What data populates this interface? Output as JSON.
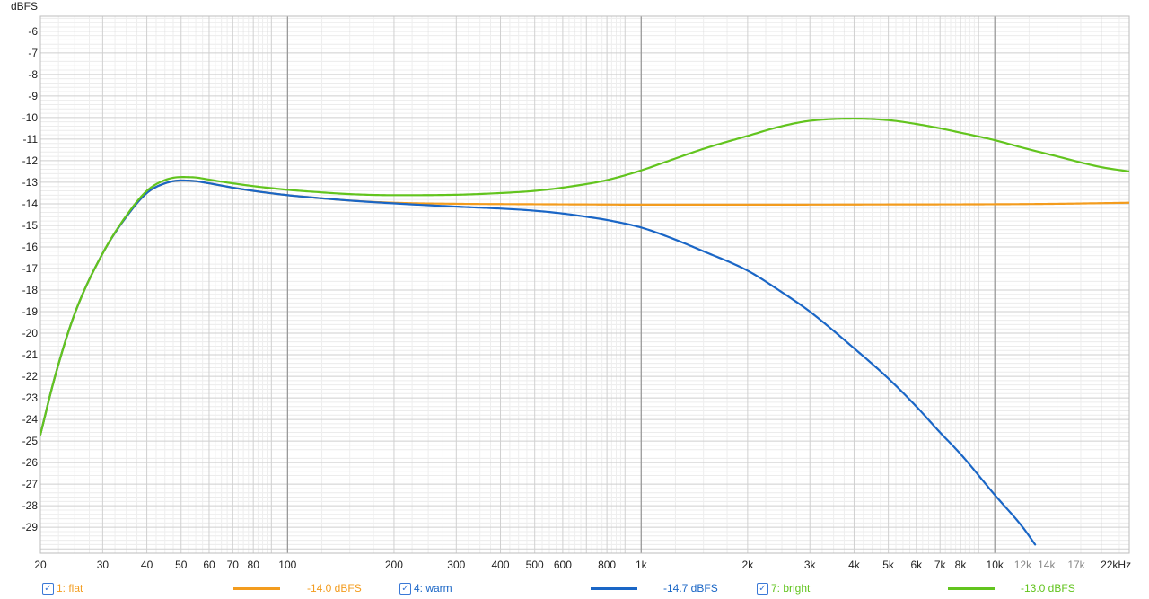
{
  "chart_data": {
    "type": "line",
    "ylabel": "dBFS",
    "xscale": "log",
    "xlim": [
      20,
      24000
    ],
    "ylim": [
      -30.2,
      -5.3
    ],
    "grid": true,
    "legend_placement": "bottom",
    "yticks": [
      -6,
      -7,
      -8,
      -9,
      -10,
      -11,
      -12,
      -13,
      -14,
      -15,
      -16,
      -17,
      -18,
      -19,
      -20,
      -21,
      -22,
      -23,
      -24,
      -25,
      -26,
      -27,
      -28,
      -29
    ],
    "xticks": [
      {
        "value": 20,
        "label": "20"
      },
      {
        "value": 30,
        "label": "30"
      },
      {
        "value": 40,
        "label": "40"
      },
      {
        "value": 50,
        "label": "50"
      },
      {
        "value": 60,
        "label": "60"
      },
      {
        "value": 70,
        "label": "70"
      },
      {
        "value": 80,
        "label": "80"
      },
      {
        "value": 100,
        "label": "100"
      },
      {
        "value": 200,
        "label": "200"
      },
      {
        "value": 300,
        "label": "300"
      },
      {
        "value": 400,
        "label": "400"
      },
      {
        "value": 500,
        "label": "500"
      },
      {
        "value": 600,
        "label": "600"
      },
      {
        "value": 800,
        "label": "800"
      },
      {
        "value": 1000,
        "label": "1k"
      },
      {
        "value": 2000,
        "label": "2k"
      },
      {
        "value": 3000,
        "label": "3k"
      },
      {
        "value": 4000,
        "label": "4k"
      },
      {
        "value": 5000,
        "label": "5k"
      },
      {
        "value": 6000,
        "label": "6k"
      },
      {
        "value": 7000,
        "label": "7k"
      },
      {
        "value": 8000,
        "label": "8k"
      },
      {
        "value": 10000,
        "label": "10k"
      },
      {
        "value": 12000,
        "label": "12k",
        "minor": true
      },
      {
        "value": 14000,
        "label": "14k",
        "minor": true
      },
      {
        "value": 17000,
        "label": "17k",
        "minor": true
      },
      {
        "value": 22000,
        "label": "22kHz"
      }
    ],
    "series": [
      {
        "name": "1: flat",
        "legend_value": "-14.0 dBFS",
        "color": "#f39c1e",
        "x": [
          20,
          22,
          25,
          30,
          35,
          40,
          45,
          50,
          55,
          60,
          70,
          80,
          100,
          120,
          150,
          200,
          300,
          500,
          700,
          1000,
          2000,
          5000,
          10000,
          15000,
          20000,
          24000
        ],
        "y": [
          -24.7,
          -22.0,
          -19.1,
          -16.3,
          -14.6,
          -13.5,
          -13.05,
          -12.92,
          -12.95,
          -13.05,
          -13.25,
          -13.4,
          -13.6,
          -13.72,
          -13.85,
          -13.95,
          -14.0,
          -14.02,
          -14.03,
          -14.04,
          -14.04,
          -14.03,
          -14.02,
          -14.0,
          -13.97,
          -13.95
        ]
      },
      {
        "name": "4: warm",
        "legend_value": "-14.7 dBFS",
        "color": "#1a66c6",
        "x": [
          20,
          22,
          25,
          30,
          35,
          40,
          45,
          50,
          55,
          60,
          70,
          80,
          100,
          120,
          150,
          200,
          300,
          400,
          500,
          600,
          700,
          800,
          1000,
          1200,
          1500,
          2000,
          2500,
          3000,
          4000,
          5000,
          6000,
          7000,
          8000,
          10000,
          12000,
          13000
        ],
        "y": [
          -24.7,
          -22.0,
          -19.1,
          -16.3,
          -14.6,
          -13.5,
          -13.05,
          -12.92,
          -12.95,
          -13.05,
          -13.25,
          -13.4,
          -13.6,
          -13.72,
          -13.85,
          -13.98,
          -14.13,
          -14.22,
          -14.32,
          -14.45,
          -14.6,
          -14.75,
          -15.1,
          -15.55,
          -16.2,
          -17.1,
          -18.1,
          -19.0,
          -20.7,
          -22.1,
          -23.4,
          -24.6,
          -25.6,
          -27.5,
          -29.0,
          -29.8
        ]
      },
      {
        "name": "7: bright",
        "legend_value": "-13.0 dBFS",
        "color": "#62c41e",
        "x": [
          20,
          22,
          25,
          30,
          35,
          40,
          45,
          50,
          55,
          60,
          70,
          80,
          100,
          120,
          150,
          200,
          300,
          400,
          500,
          600,
          800,
          1000,
          1200,
          1500,
          2000,
          2500,
          3000,
          4000,
          5000,
          6000,
          7000,
          8000,
          10000,
          12000,
          15000,
          20000,
          24000
        ],
        "y": [
          -24.7,
          -22.0,
          -19.1,
          -16.3,
          -14.55,
          -13.4,
          -12.9,
          -12.76,
          -12.78,
          -12.88,
          -13.05,
          -13.18,
          -13.35,
          -13.45,
          -13.55,
          -13.6,
          -13.58,
          -13.5,
          -13.4,
          -13.25,
          -12.9,
          -12.45,
          -12.0,
          -11.45,
          -10.85,
          -10.4,
          -10.15,
          -10.05,
          -10.12,
          -10.3,
          -10.5,
          -10.7,
          -11.05,
          -11.4,
          -11.8,
          -12.3,
          -12.5
        ]
      }
    ]
  }
}
